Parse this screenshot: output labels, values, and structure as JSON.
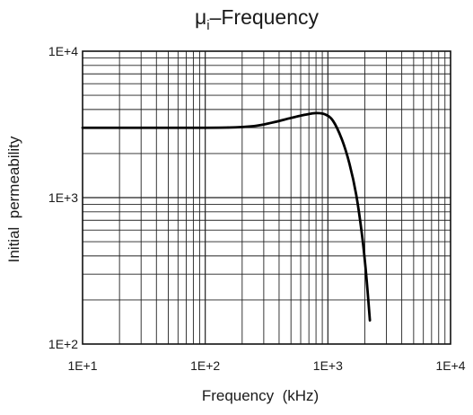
{
  "chart_data": {
    "type": "line",
    "title_main": "μ",
    "title_sub": "i",
    "title_rest": "–Frequency",
    "xlabel": "Frequency  (kHz)",
    "ylabel": "Initial  permeability",
    "x_scale": "log",
    "y_scale": "log",
    "xlim": [
      10,
      10000
    ],
    "ylim": [
      100,
      10000
    ],
    "x_tick_labels": [
      "1E+1",
      "1E+2",
      "1E+3",
      "1E+4"
    ],
    "y_tick_labels": [
      "1E+2",
      "1E+3",
      "1E+4"
    ],
    "grid": true,
    "series": [
      {
        "x": [
          10,
          50,
          150,
          250,
          350,
          500,
          650,
          800,
          950,
          1100,
          1300,
          1500,
          1700,
          1900,
          2050,
          2200
        ],
        "y": [
          3000,
          3000,
          3010,
          3080,
          3250,
          3500,
          3680,
          3780,
          3700,
          3350,
          2500,
          1700,
          1050,
          550,
          300,
          145
        ]
      }
    ]
  }
}
